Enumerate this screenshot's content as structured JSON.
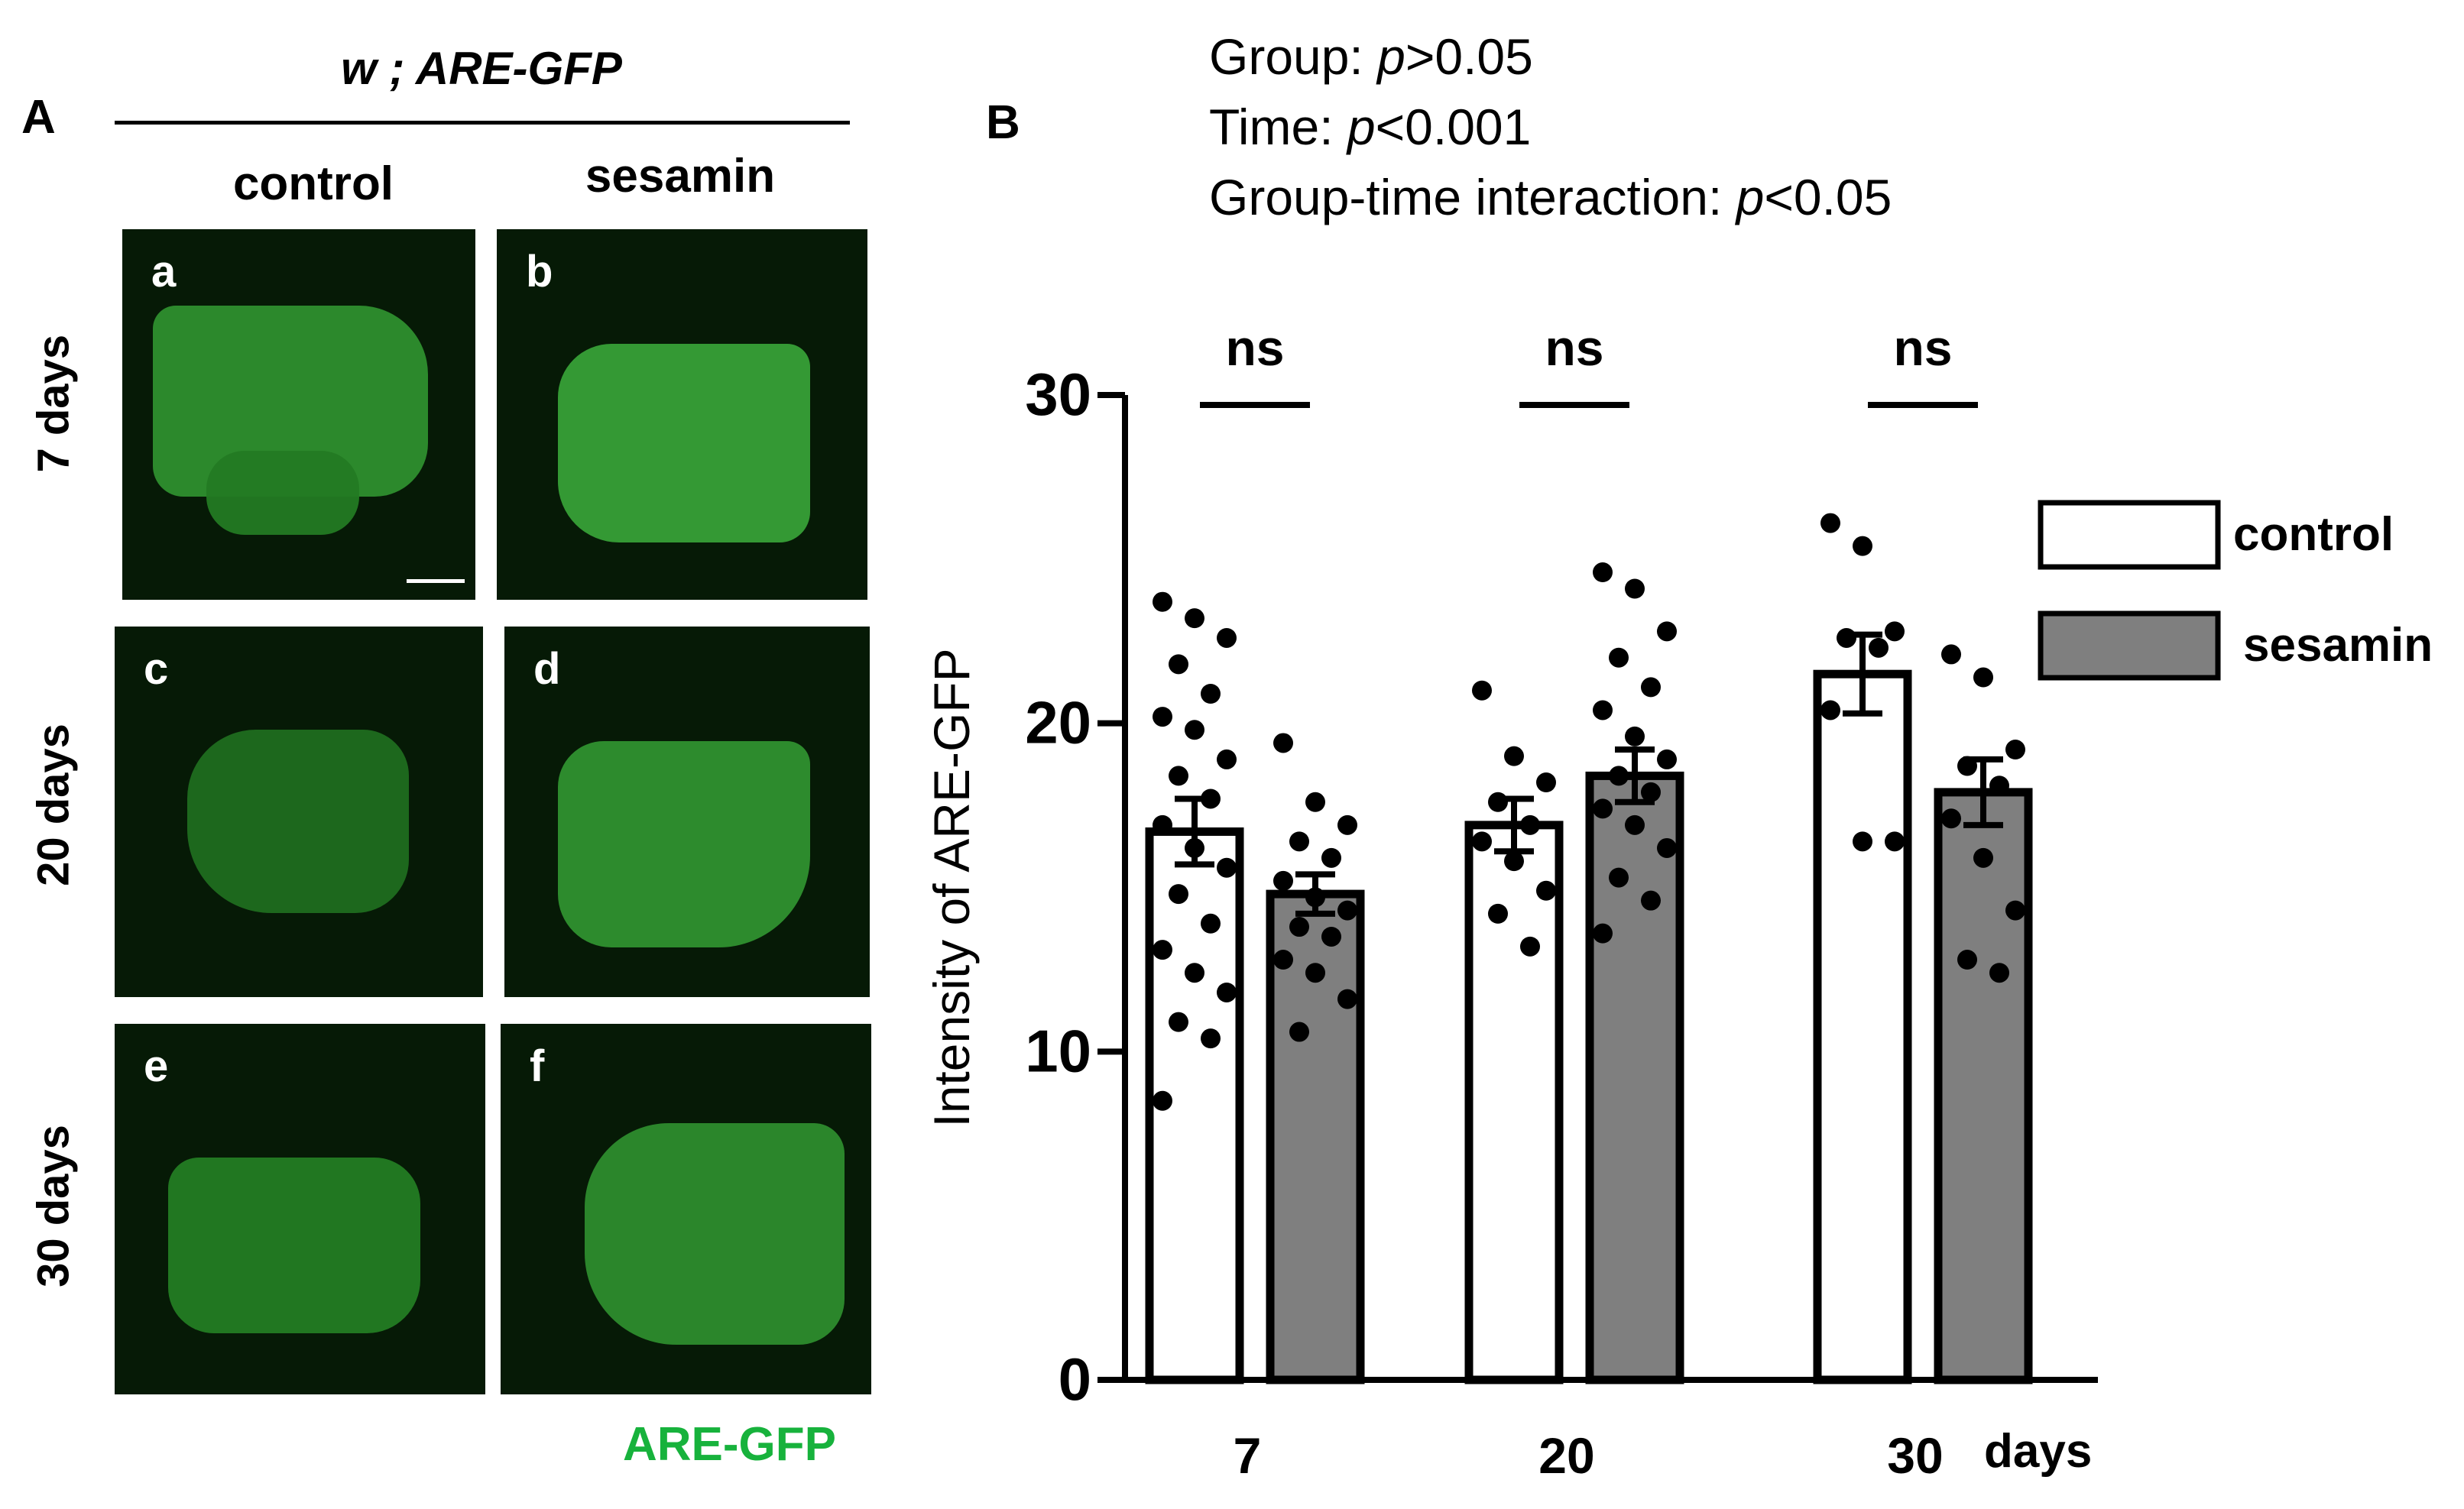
{
  "panel_a": {
    "letter": "A",
    "genotype": "w ; ARE-GFP",
    "columns": [
      "control",
      "sesamin"
    ],
    "rows": [
      "7 days",
      "20 days",
      "30 days"
    ],
    "tile_letters": [
      "a",
      "b",
      "c",
      "d",
      "e",
      "f"
    ],
    "channel_label": "ARE-GFP",
    "channel_color": "#17b23c"
  },
  "panel_b": {
    "letter": "B",
    "stats": [
      {
        "prefix": "Group: ",
        "p": "p",
        "rest": ">0.05"
      },
      {
        "prefix": "Time: ",
        "p": "p",
        "rest": "<0.001"
      },
      {
        "prefix": "Group-time interaction: ",
        "p": "p",
        "rest": "<0.05"
      }
    ],
    "x_unit": "days"
  },
  "chart_data": {
    "type": "bar",
    "ylabel": "Intensity of ARE-GFP",
    "ylim": [
      0,
      30
    ],
    "yticks": [
      0,
      10,
      20,
      30
    ],
    "categories": [
      "7",
      "20",
      "30"
    ],
    "significance": [
      "ns",
      "ns",
      "ns"
    ],
    "legend_position": "right",
    "series": [
      {
        "name": "control",
        "color": "#ffffff",
        "means": [
          16.7,
          16.9,
          21.5
        ],
        "sem": [
          1.0,
          0.8,
          1.2
        ],
        "points": [
          [
            23.7,
            23.2,
            22.6,
            21.8,
            20.9,
            20.2,
            19.8,
            18.9,
            18.4,
            17.7,
            16.9,
            16.2,
            15.6,
            14.8,
            13.9,
            13.1,
            12.4,
            11.8,
            10.9,
            10.4,
            8.5
          ],
          [
            21.0,
            19.0,
            18.2,
            17.6,
            16.9,
            16.4,
            15.8,
            14.9,
            14.2,
            13.2
          ],
          [
            26.1,
            25.4,
            22.8,
            22.6,
            22.3,
            20.4,
            16.4,
            16.4
          ]
        ]
      },
      {
        "name": "sesamin",
        "color": "#7f7f7f",
        "means": [
          14.8,
          18.4,
          17.9
        ],
        "sem": [
          0.6,
          0.8,
          1.0
        ],
        "points": [
          [
            19.4,
            17.6,
            16.9,
            16.4,
            15.9,
            15.2,
            14.7,
            14.3,
            13.8,
            13.5,
            12.8,
            12.4,
            11.6,
            10.6
          ],
          [
            24.6,
            24.1,
            22.8,
            22.0,
            21.1,
            20.4,
            19.6,
            18.9,
            18.4,
            17.9,
            17.4,
            16.9,
            16.2,
            15.3,
            14.6,
            13.6
          ],
          [
            22.1,
            21.4,
            19.2,
            18.7,
            18.1,
            17.1,
            15.9,
            14.3,
            12.8,
            12.4
          ]
        ]
      }
    ]
  }
}
